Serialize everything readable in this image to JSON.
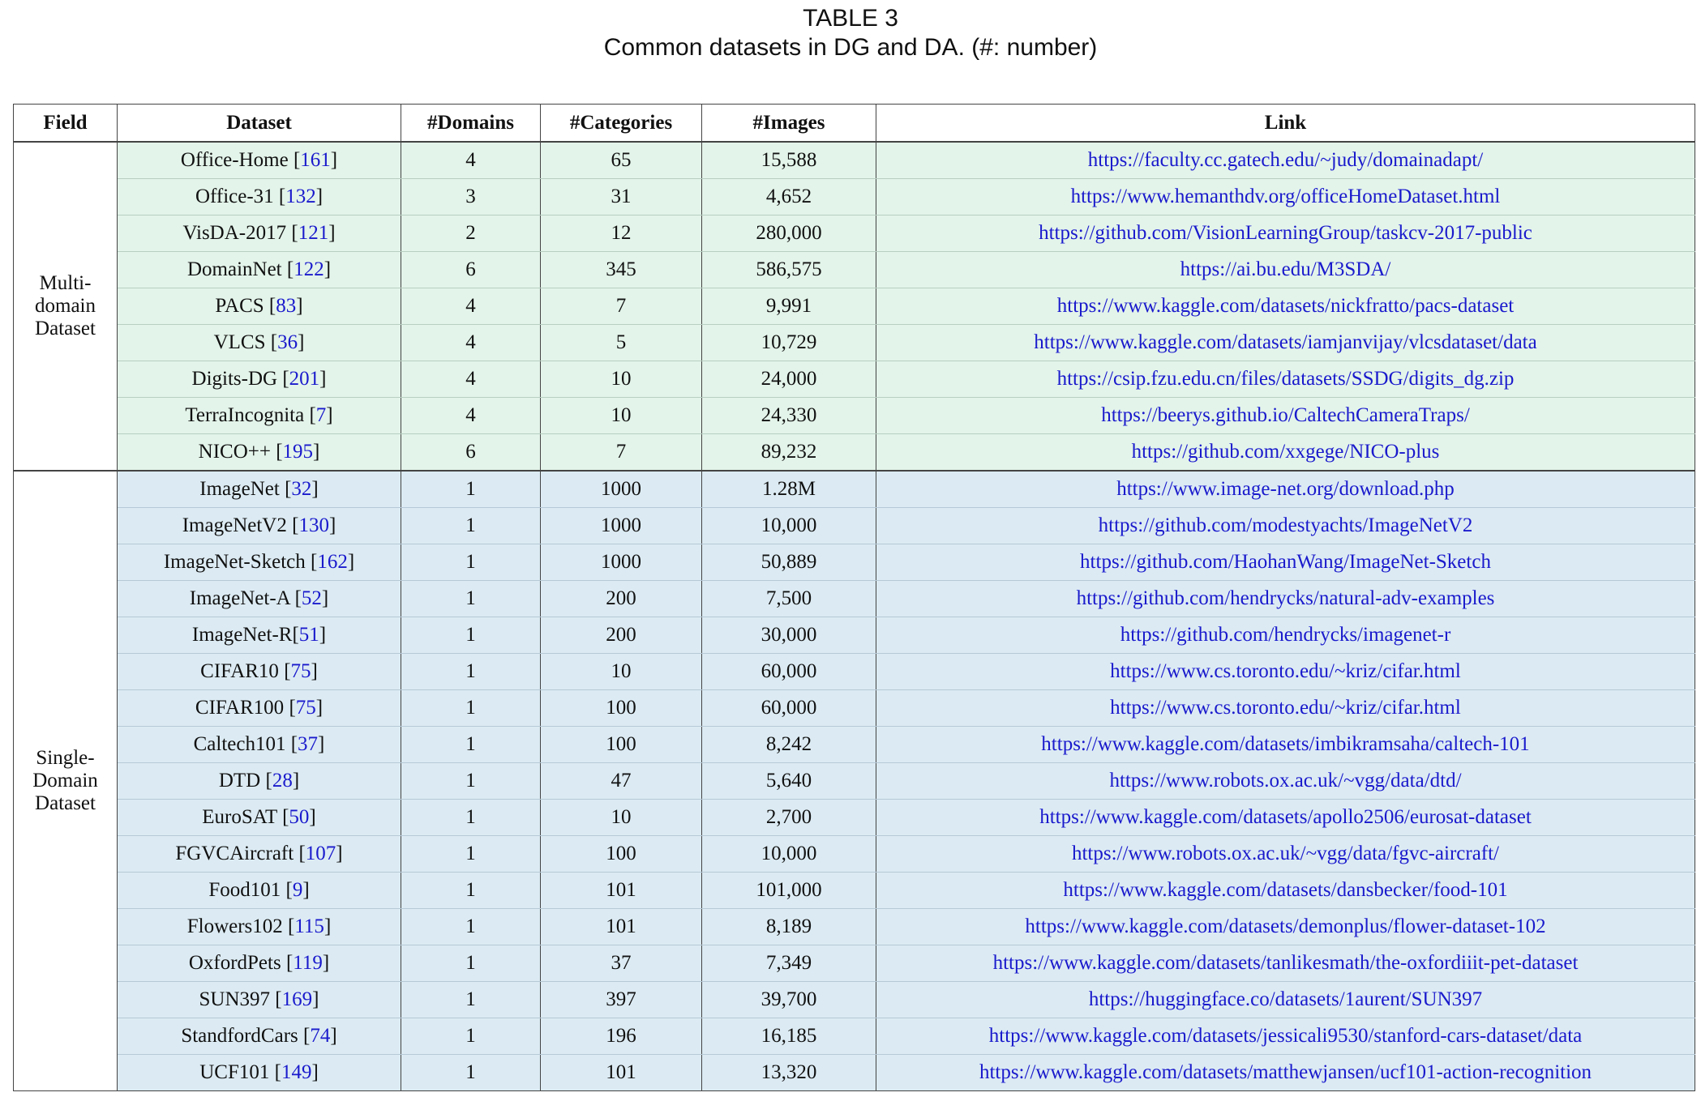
{
  "caption": {
    "label": "TABLE 3",
    "text": "Common datasets in DG and DA. (#: number)"
  },
  "columns": [
    "Field",
    "Dataset",
    "#Domains",
    "#Categories",
    "#Images",
    "Link"
  ],
  "colors": {
    "multi_domain_bg": "#e3f4ea",
    "single_domain_bg": "#dcebf3",
    "link": "#1a1acc"
  },
  "groups": [
    {
      "field": "Multi-domain Dataset",
      "field_lines": [
        "Multi-",
        "domain",
        "Dataset"
      ],
      "rows": [
        {
          "name": "Office-Home",
          "ref": "161",
          "domains": "4",
          "categories": "65",
          "images": "15,588",
          "link": "https://faculty.cc.gatech.edu/~judy/domainadapt/"
        },
        {
          "name": "Office-31",
          "ref": "132",
          "domains": "3",
          "categories": "31",
          "images": "4,652",
          "link": "https://www.hemanthdv.org/officeHomeDataset.html"
        },
        {
          "name": "VisDA-2017",
          "ref": "121",
          "domains": "2",
          "categories": "12",
          "images": "280,000",
          "link": "https://github.com/VisionLearningGroup/taskcv-2017-public"
        },
        {
          "name": "DomainNet",
          "ref": "122",
          "domains": "6",
          "categories": "345",
          "images": "586,575",
          "link": "https://ai.bu.edu/M3SDA/"
        },
        {
          "name": "PACS",
          "ref": "83",
          "domains": "4",
          "categories": "7",
          "images": "9,991",
          "link": "https://www.kaggle.com/datasets/nickfratto/pacs-dataset"
        },
        {
          "name": "VLCS",
          "ref": "36",
          "domains": "4",
          "categories": "5",
          "images": "10,729",
          "link": "https://www.kaggle.com/datasets/iamjanvijay/vlcsdataset/data"
        },
        {
          "name": "Digits-DG",
          "ref": "201",
          "domains": "4",
          "categories": "10",
          "images": "24,000",
          "link": "https://csip.fzu.edu.cn/files/datasets/SSDG/digits_dg.zip"
        },
        {
          "name": "TerraIncognita",
          "ref": "7",
          "domains": "4",
          "categories": "10",
          "images": "24,330",
          "link": "https://beerys.github.io/CaltechCameraTraps/"
        },
        {
          "name": "NICO++",
          "ref": "195",
          "domains": "6",
          "categories": "7",
          "images": "89,232",
          "link": "https://github.com/xxgege/NICO-plus"
        }
      ]
    },
    {
      "field": "Single-Domain Dataset",
      "field_lines": [
        "Single-",
        "Domain",
        "Dataset"
      ],
      "rows": [
        {
          "name": "ImageNet",
          "ref": "32",
          "domains": "1",
          "categories": "1000",
          "images": "1.28M",
          "link": "https://www.image-net.org/download.php"
        },
        {
          "name": "ImageNetV2",
          "ref": "130",
          "domains": "1",
          "categories": "1000",
          "images": "10,000",
          "link": "https://github.com/modestyachts/ImageNetV2"
        },
        {
          "name": "ImageNet-Sketch",
          "ref": "162",
          "domains": "1",
          "categories": "1000",
          "images": "50,889",
          "link": "https://github.com/HaohanWang/ImageNet-Sketch"
        },
        {
          "name": "ImageNet-A",
          "ref": "52",
          "domains": "1",
          "categories": "200",
          "images": "7,500",
          "link": "https://github.com/hendrycks/natural-adv-examples"
        },
        {
          "name": "ImageNet-R",
          "ref": "51",
          "domains": "1",
          "categories": "200",
          "images": "30,000",
          "link": "https://github.com/hendrycks/imagenet-r",
          "nospace": true
        },
        {
          "name": "CIFAR10",
          "ref": "75",
          "domains": "1",
          "categories": "10",
          "images": "60,000",
          "link": "https://www.cs.toronto.edu/~kriz/cifar.html"
        },
        {
          "name": "CIFAR100",
          "ref": "75",
          "domains": "1",
          "categories": "100",
          "images": "60,000",
          "link": "https://www.cs.toronto.edu/~kriz/cifar.html"
        },
        {
          "name": "Caltech101",
          "ref": "37",
          "domains": "1",
          "categories": "100",
          "images": "8,242",
          "link": "https://www.kaggle.com/datasets/imbikramsaha/caltech-101"
        },
        {
          "name": "DTD",
          "ref": "28",
          "domains": "1",
          "categories": "47",
          "images": "5,640",
          "link": "https://www.robots.ox.ac.uk/~vgg/data/dtd/"
        },
        {
          "name": "EuroSAT",
          "ref": "50",
          "domains": "1",
          "categories": "10",
          "images": "2,700",
          "link": "https://www.kaggle.com/datasets/apollo2506/eurosat-dataset"
        },
        {
          "name": "FGVCAircraft",
          "ref": "107",
          "domains": "1",
          "categories": "100",
          "images": "10,000",
          "link": "https://www.robots.ox.ac.uk/~vgg/data/fgvc-aircraft/"
        },
        {
          "name": "Food101",
          "ref": "9",
          "domains": "1",
          "categories": "101",
          "images": "101,000",
          "link": "https://www.kaggle.com/datasets/dansbecker/food-101"
        },
        {
          "name": "Flowers102",
          "ref": "115",
          "domains": "1",
          "categories": "101",
          "images": "8,189",
          "link": "https://www.kaggle.com/datasets/demonplus/flower-dataset-102"
        },
        {
          "name": "OxfordPets",
          "ref": "119",
          "domains": "1",
          "categories": "37",
          "images": "7,349",
          "link": "https://www.kaggle.com/datasets/tanlikesmath/the-oxfordiiit-pet-dataset"
        },
        {
          "name": "SUN397",
          "ref": "169",
          "domains": "1",
          "categories": "397",
          "images": "39,700",
          "link": "https://huggingface.co/datasets/1aurent/SUN397"
        },
        {
          "name": "StandfordCars",
          "ref": "74",
          "domains": "1",
          "categories": "196",
          "images": "16,185",
          "link": "https://www.kaggle.com/datasets/jessicali9530/stanford-cars-dataset/data"
        },
        {
          "name": "UCF101",
          "ref": "149",
          "domains": "1",
          "categories": "101",
          "images": "13,320",
          "link": "https://www.kaggle.com/datasets/matthewjansen/ucf101-action-recognition"
        }
      ]
    }
  ]
}
